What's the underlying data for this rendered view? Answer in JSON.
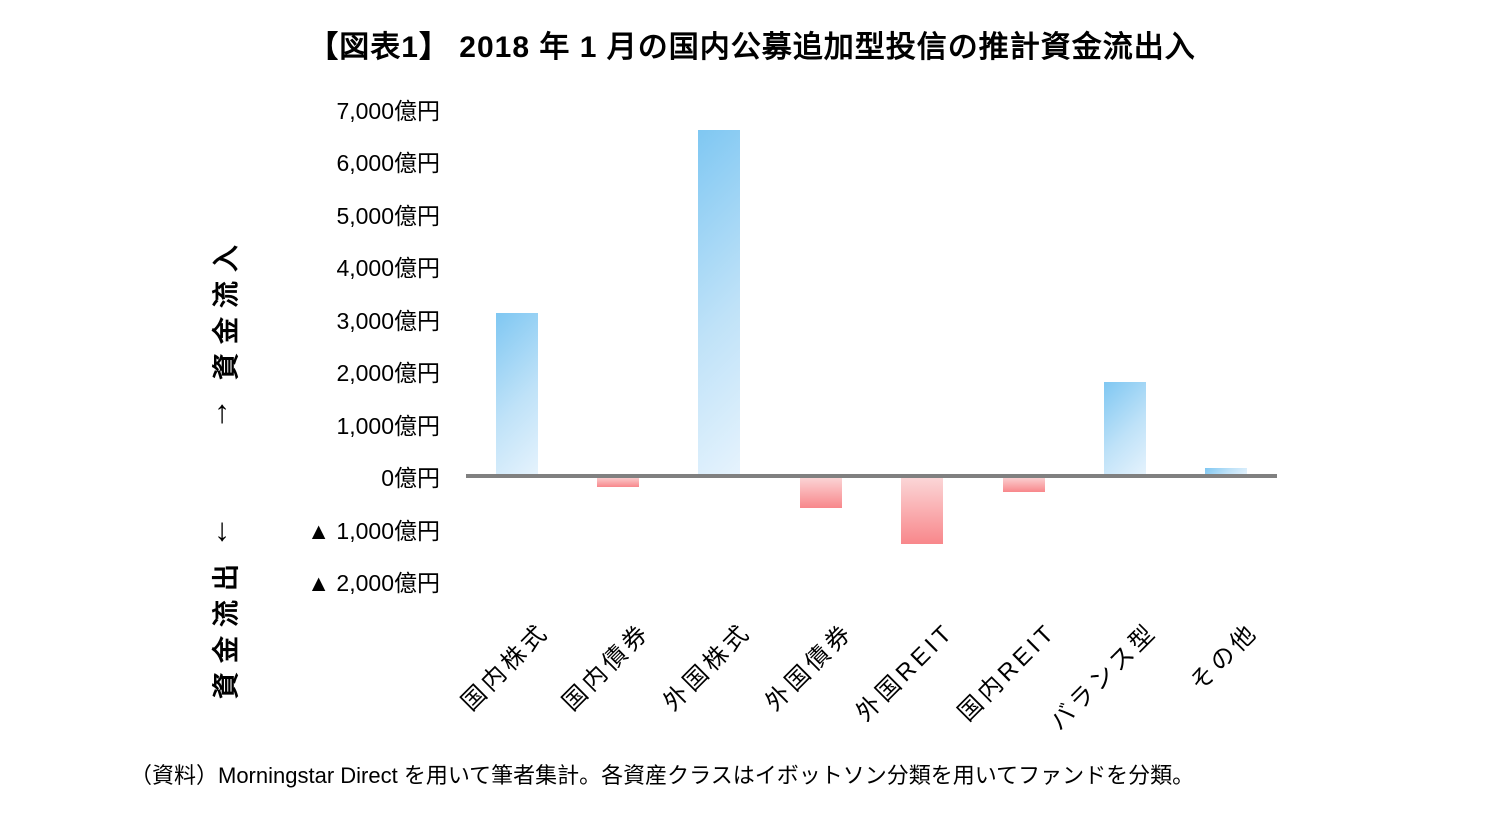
{
  "title": "【図表1】 2018 年 1 月の国内公募追加型投信の推計資金流出入",
  "source_note": "（資料）Morningstar Direct を用いて筆者集計。各資産クラスはイボットソン分類を用いてファンドを分類。",
  "y_axis": {
    "inflow_label": "資金流入",
    "inflow_arrow": "↑",
    "outflow_label": "資金流出",
    "outflow_arrow": "↓"
  },
  "chart_data": {
    "type": "bar",
    "title": "【図表1】 2018 年 1 月の国内公募追加型投信の推計資金流出入",
    "unit": "億円",
    "categories": [
      "国内株式",
      "国内債券",
      "外国株式",
      "外国債券",
      "外国REIT",
      "国内REIT",
      "バランス型",
      "その他"
    ],
    "values": [
      3100,
      -200,
      6600,
      -600,
      -1300,
      -300,
      1800,
      150
    ],
    "ylim": [
      -2000,
      7000
    ],
    "grid": false,
    "yticks": [
      {
        "value": 7000,
        "label": "7,000億円"
      },
      {
        "value": 6000,
        "label": "6,000億円"
      },
      {
        "value": 5000,
        "label": "5,000億円"
      },
      {
        "value": 4000,
        "label": "4,000億円"
      },
      {
        "value": 3000,
        "label": "3,000億円"
      },
      {
        "value": 2000,
        "label": "2,000億円"
      },
      {
        "value": 1000,
        "label": "1,000億円"
      },
      {
        "value": 0,
        "label": "0億円"
      },
      {
        "value": -1000,
        "label": "▲ 1,000億円"
      },
      {
        "value": -2000,
        "label": "▲ 2,000億円"
      }
    ],
    "colors": {
      "positive_bar_start": "#7fc7f2",
      "positive_bar_end": "#e6f3fd",
      "negative_bar_start": "#fbd8d9",
      "negative_bar_end": "#f8878b",
      "axis_line": "#808080",
      "text": "#000000"
    }
  }
}
